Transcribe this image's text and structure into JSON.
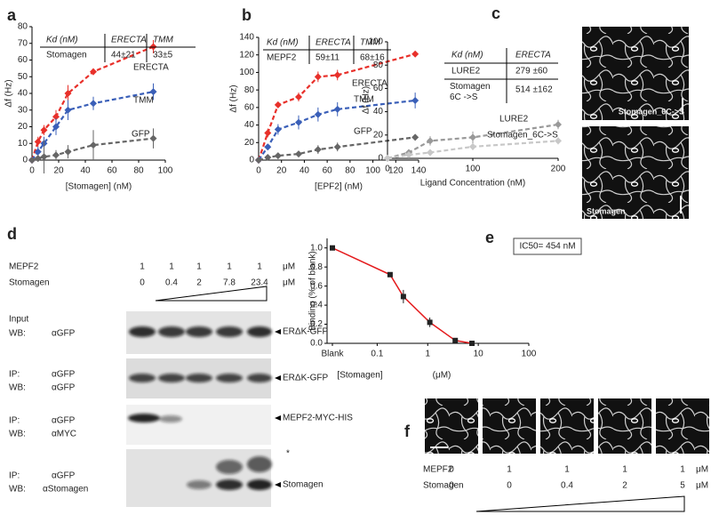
{
  "panel_labels": [
    "a",
    "b",
    "c",
    "d",
    "e",
    "f"
  ],
  "chart_data": [
    {
      "type": "line",
      "x_label": "[Stomagen] (nM)",
      "y_label": "Δf (Hz)",
      "xlim": [
        0,
        100
      ],
      "xticks": [
        0,
        20,
        40,
        60,
        80,
        100
      ],
      "ylim": [
        0,
        80
      ],
      "yticks": [
        0,
        10,
        20,
        30,
        40,
        50,
        60,
        70,
        80
      ],
      "line_style": "dashed",
      "x": [
        0,
        4.5,
        9,
        18,
        27,
        46,
        91
      ],
      "series": [
        {
          "name": "ERECTA",
          "color": "#e8302a",
          "values": [
            0,
            11,
            18,
            26,
            40,
            53,
            68
          ],
          "errors": [
            0,
            3,
            3,
            4,
            5,
            2,
            4
          ]
        },
        {
          "name": "TMM",
          "color": "#3a5fb8",
          "values": [
            0,
            5,
            10,
            20,
            30,
            34,
            41
          ],
          "errors": [
            0,
            3,
            4,
            5,
            6,
            4,
            5
          ]
        },
        {
          "name": "GFP",
          "color": "#666666",
          "values": [
            0,
            1,
            2,
            3,
            5,
            9,
            13
          ],
          "errors": [
            0,
            2,
            10,
            3,
            4,
            9,
            6
          ]
        }
      ],
      "table": {
        "header": [
          "Kd (nM)",
          "ERECTA",
          "TMM"
        ],
        "rows": [
          [
            "Stomagen",
            "44±21",
            "33±5"
          ]
        ]
      }
    },
    {
      "type": "line",
      "x_label": "[EPF2] (nM)",
      "y_label": "Δf (Hz)",
      "xlim": [
        0,
        140
      ],
      "xticks": [
        0,
        20,
        40,
        60,
        80,
        100,
        120,
        140
      ],
      "ylim": [
        0,
        140
      ],
      "yticks": [
        0,
        20,
        40,
        60,
        80,
        100,
        120,
        140
      ],
      "line_style": "dashed",
      "x": [
        0,
        8,
        17,
        35,
        52,
        69,
        137
      ],
      "series": [
        {
          "name": "ERECTA",
          "color": "#e8302a",
          "values": [
            0,
            31,
            63,
            72,
            95,
            97,
            121
          ],
          "errors": [
            0,
            5,
            3,
            5,
            6,
            6,
            2
          ]
        },
        {
          "name": "TMM",
          "color": "#3a5fb8",
          "values": [
            0,
            15,
            35,
            43,
            52,
            58,
            68
          ],
          "errors": [
            0,
            3,
            6,
            8,
            8,
            8,
            9
          ]
        },
        {
          "name": "GFP",
          "color": "#666666",
          "values": [
            0,
            3,
            5,
            7,
            12,
            15,
            26
          ],
          "errors": [
            0,
            2,
            2,
            3,
            5,
            5,
            2
          ]
        }
      ],
      "table": {
        "header": [
          "Kd (nM)",
          "ERECTA",
          "TMM"
        ],
        "rows": [
          [
            "MEPF2",
            "59±11",
            "68±16"
          ]
        ]
      }
    },
    {
      "type": "line",
      "x_label": "Ligand Concentration (nM)",
      "y_label": "Δf (Hz)",
      "xlim": [
        0,
        200
      ],
      "xticks": [
        0,
        100,
        200
      ],
      "ylim": [
        0,
        100
      ],
      "yticks": [
        0,
        20,
        40,
        60,
        80,
        100
      ],
      "line_style": "dashed",
      "x": [
        0,
        25,
        50,
        100,
        200
      ],
      "series": [
        {
          "name": "LURE2",
          "color": "#999999",
          "values": [
            0,
            5,
            15,
            18,
            29
          ],
          "errors": [
            0,
            2,
            4,
            5,
            4
          ]
        },
        {
          "name": "Stomagen_6C->S",
          "color": "#c8c8c8",
          "values": [
            0,
            3,
            5,
            10,
            15
          ],
          "errors": [
            0,
            2,
            2,
            3,
            3
          ]
        }
      ],
      "table": {
        "header": [
          "Kd (nM)",
          "ERECTA"
        ],
        "rows": [
          [
            "LURE2",
            "279 ±60"
          ],
          [
            "Stomagen 6C ->S",
            "514 ±162"
          ]
        ]
      }
    },
    {
      "type": "line",
      "x_label": "[Stomagen]",
      "x_label_unit": "(μM)",
      "y_label": "Binding (% of blank)",
      "xlog": true,
      "xlim": [
        0.013,
        100
      ],
      "xticks": [
        {
          "value": 0.013,
          "label": "Blank"
        },
        0.1,
        1,
        10,
        100
      ],
      "ylim": [
        0,
        1.1
      ],
      "yticks": [
        {
          "value": 0,
          "label": "0.0"
        },
        0.2,
        0.4,
        0.6,
        0.8,
        {
          "value": 1,
          "label": "1.0"
        }
      ],
      "line_style": "solid",
      "line_color": "#e41a1c",
      "x": [
        0.013,
        0.18,
        0.33,
        1.1,
        3.5,
        7.5
      ],
      "series": [
        {
          "color": "#222222",
          "values": [
            1.0,
            0.72,
            0.49,
            0.22,
            0.03,
            0.0
          ],
          "errors": [
            0,
            0.02,
            0.07,
            0.05,
            0.01,
            0.01
          ]
        }
      ],
      "annotation": "IC50= 454 nM"
    }
  ],
  "micrographs_c": [
    "Stomagen_6C->S",
    "Stomagen"
  ],
  "blot": {
    "header": [
      {
        "name": "MEPF2",
        "values": [
          "1",
          "1",
          "1",
          "1",
          "1"
        ],
        "unit": "μM"
      },
      {
        "name": "Stomagen",
        "values": [
          "0",
          "0.4",
          "2",
          "7.8",
          "23.4"
        ],
        "unit": "μM"
      }
    ],
    "rows": [
      {
        "labels": [
          "Input",
          "WB:"
        ],
        "antibodies": [
          "αGFP"
        ],
        "band": "ERΔK-GFP"
      },
      {
        "labels": [
          "IP:",
          "WB:"
        ],
        "antibodies": [
          "αGFP",
          "αGFP"
        ],
        "band": "ERΔK-GFP"
      },
      {
        "labels": [
          "IP:",
          "WB:"
        ],
        "antibodies": [
          "αGFP",
          "αMYC"
        ],
        "band": "MEPF2-MYC-HIS"
      },
      {
        "labels": [
          "IP:",
          "WB:"
        ],
        "antibodies": [
          "αGFP",
          "αStomagen"
        ],
        "band": "Stomagen"
      }
    ],
    "star": "*"
  },
  "panel_f": {
    "header": [
      {
        "name": "MEPF2",
        "values": [
          "0",
          "1",
          "1",
          "1",
          "1"
        ],
        "unit": "μM"
      },
      {
        "name": "Stomagen",
        "values": [
          "0",
          "0",
          "0.4",
          "2",
          "5"
        ],
        "unit": "μM"
      }
    ]
  }
}
